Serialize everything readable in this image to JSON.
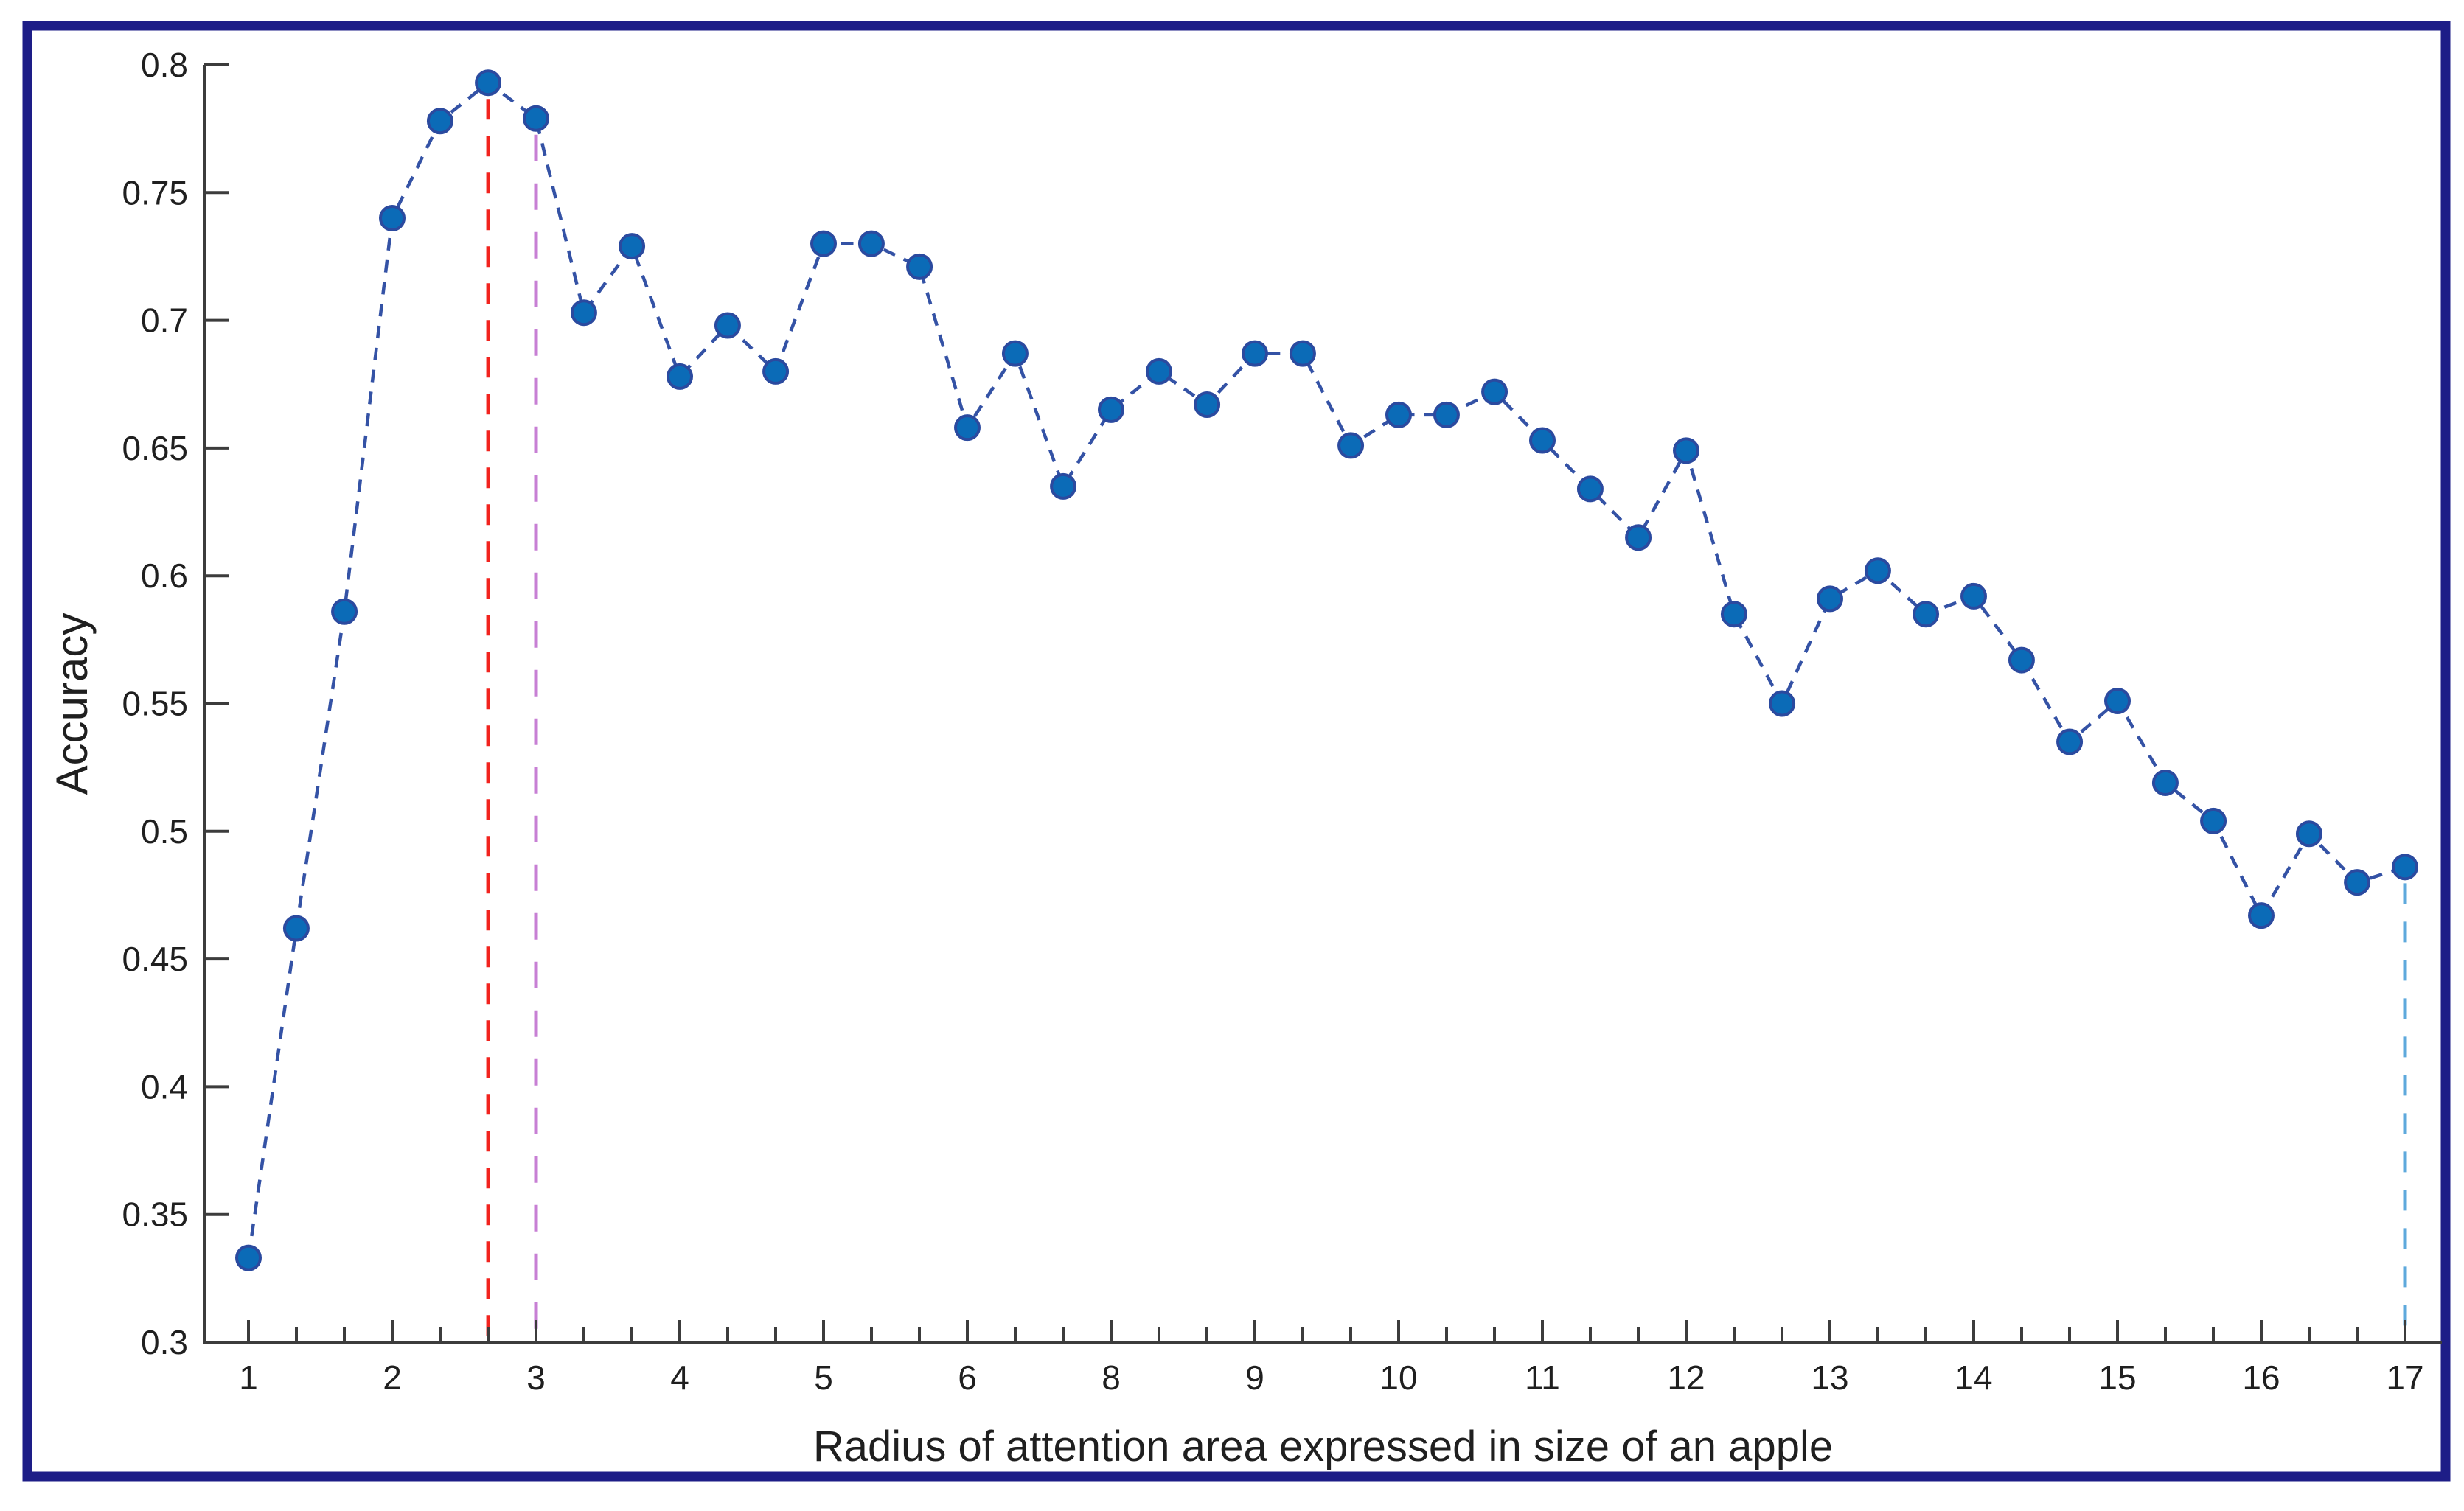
{
  "chart_data": {
    "type": "line",
    "title": "",
    "xlabel": "Radius of attention area expressed in size of an apple",
    "ylabel": "Accuracy",
    "ylim": [
      0.3,
      0.8
    ],
    "ytick_labels": [
      "0.8",
      "0.75",
      "0.7",
      "0.65",
      "0.6",
      "0.55",
      "0.5",
      "0.45",
      "0.4",
      "0.35",
      "0.3"
    ],
    "ytick_values": [
      0.8,
      0.75,
      0.7,
      0.65,
      0.6,
      0.55,
      0.5,
      0.45,
      0.4,
      0.35,
      0.3
    ],
    "x_major_tick_labels": [
      "1",
      "2",
      "3",
      "4",
      "5",
      "6",
      "8",
      "9",
      "10",
      "11",
      "12",
      "13",
      "14",
      "15",
      "16",
      "17"
    ],
    "minor_ticks_per_major_interval": 2,
    "grid": "off",
    "legend": "none",
    "series": [
      {
        "name": "accuracy-vs-radius",
        "line_style": "dashed",
        "marker": "circle",
        "points": [
          {
            "pos": 0.0,
            "y": 0.333
          },
          {
            "pos": 0.333,
            "y": 0.462
          },
          {
            "pos": 0.667,
            "y": 0.586
          },
          {
            "pos": 1.0,
            "y": 0.74
          },
          {
            "pos": 1.333,
            "y": 0.778
          },
          {
            "pos": 1.667,
            "y": 0.793
          },
          {
            "pos": 2.0,
            "y": 0.779
          },
          {
            "pos": 2.333,
            "y": 0.703
          },
          {
            "pos": 2.667,
            "y": 0.729
          },
          {
            "pos": 3.0,
            "y": 0.678
          },
          {
            "pos": 3.333,
            "y": 0.698
          },
          {
            "pos": 3.667,
            "y": 0.68
          },
          {
            "pos": 4.0,
            "y": 0.73
          },
          {
            "pos": 4.333,
            "y": 0.73
          },
          {
            "pos": 4.667,
            "y": 0.721
          },
          {
            "pos": 5.0,
            "y": 0.658
          },
          {
            "pos": 5.333,
            "y": 0.687
          },
          {
            "pos": 5.667,
            "y": 0.635
          },
          {
            "pos": 6.0,
            "y": 0.665
          },
          {
            "pos": 6.333,
            "y": 0.68
          },
          {
            "pos": 6.667,
            "y": 0.667
          },
          {
            "pos": 7.0,
            "y": 0.687
          },
          {
            "pos": 7.333,
            "y": 0.687
          },
          {
            "pos": 7.667,
            "y": 0.651
          },
          {
            "pos": 8.0,
            "y": 0.663
          },
          {
            "pos": 8.333,
            "y": 0.663
          },
          {
            "pos": 8.667,
            "y": 0.672
          },
          {
            "pos": 9.0,
            "y": 0.653
          },
          {
            "pos": 9.333,
            "y": 0.634
          },
          {
            "pos": 9.667,
            "y": 0.615
          },
          {
            "pos": 10.0,
            "y": 0.649
          },
          {
            "pos": 10.333,
            "y": 0.585
          },
          {
            "pos": 10.667,
            "y": 0.55
          },
          {
            "pos": 11.0,
            "y": 0.591
          },
          {
            "pos": 11.333,
            "y": 0.602
          },
          {
            "pos": 11.667,
            "y": 0.585
          },
          {
            "pos": 12.0,
            "y": 0.592
          },
          {
            "pos": 12.333,
            "y": 0.567
          },
          {
            "pos": 12.667,
            "y": 0.535
          },
          {
            "pos": 13.0,
            "y": 0.551
          },
          {
            "pos": 13.333,
            "y": 0.519
          },
          {
            "pos": 13.667,
            "y": 0.504
          },
          {
            "pos": 14.0,
            "y": 0.467
          },
          {
            "pos": 14.333,
            "y": 0.499
          },
          {
            "pos": 14.667,
            "y": 0.48
          },
          {
            "pos": 15.0,
            "y": 0.486
          }
        ]
      }
    ],
    "reference_lines": [
      {
        "name": "red-dashed-marker-line",
        "pos": 1.667,
        "top_value": 0.793,
        "color": "#f2231e"
      },
      {
        "name": "magenta-dashed-marker-line",
        "pos": 2.0,
        "top_value": 0.779,
        "color": "#c77fd4"
      },
      {
        "name": "cyan-dashed-marker-line",
        "pos": 15.0,
        "top_value": 0.486,
        "color": "#5ea9dc"
      }
    ]
  },
  "colors": {
    "marker_fill": "#0b6bb7",
    "marker_edge": "#2b4a9f",
    "series_line": "#3452a5",
    "axis_line": "#3c3c3c",
    "text": "#1f1f1f",
    "outer_border": "#1d1d87",
    "background": "#ffffff"
  }
}
